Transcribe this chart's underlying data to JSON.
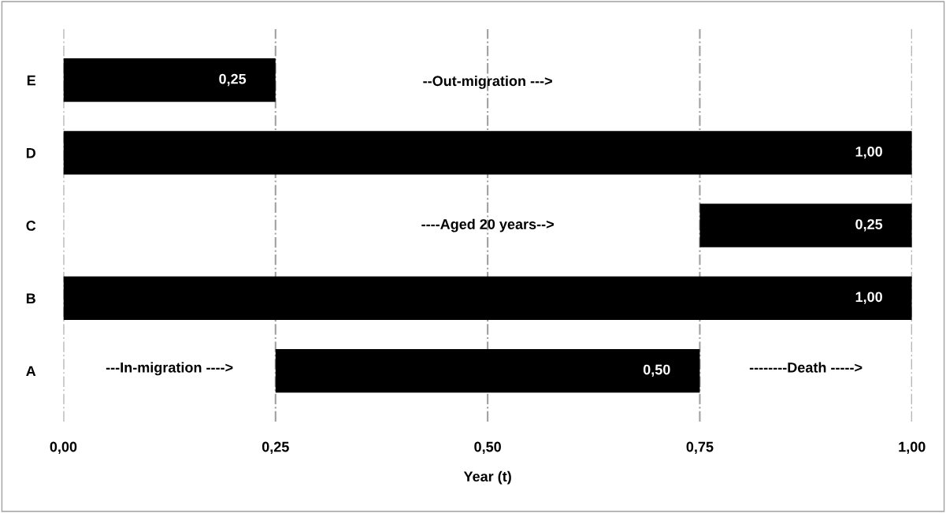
{
  "chart_data": {
    "type": "bar",
    "orientation": "horizontal",
    "xlabel": "Year (t)",
    "categories": [
      "E",
      "D",
      "C",
      "B",
      "A"
    ],
    "base": [
      0,
      0,
      0.75,
      0,
      0.25
    ],
    "values": [
      0.25,
      1.0,
      0.25,
      1.0,
      0.5
    ],
    "value_labels": [
      "0,25",
      "1,00",
      "0,25",
      "1,00",
      "0,50"
    ],
    "color": "#000000",
    "xlim": [
      0,
      1
    ],
    "xticks": [
      {
        "value": 0,
        "label": "0,00"
      },
      {
        "value": 0.25,
        "label": "0,25"
      },
      {
        "value": 0.5,
        "label": "0,50"
      },
      {
        "value": 0.75,
        "label": "0,75"
      },
      {
        "value": 1,
        "label": "1,00"
      }
    ],
    "grid": "x",
    "annotations": [
      "--Out-migration --->",
      "----Aged 20 years-->",
      "---In-migration ---->",
      "--------Death ----->"
    ]
  }
}
